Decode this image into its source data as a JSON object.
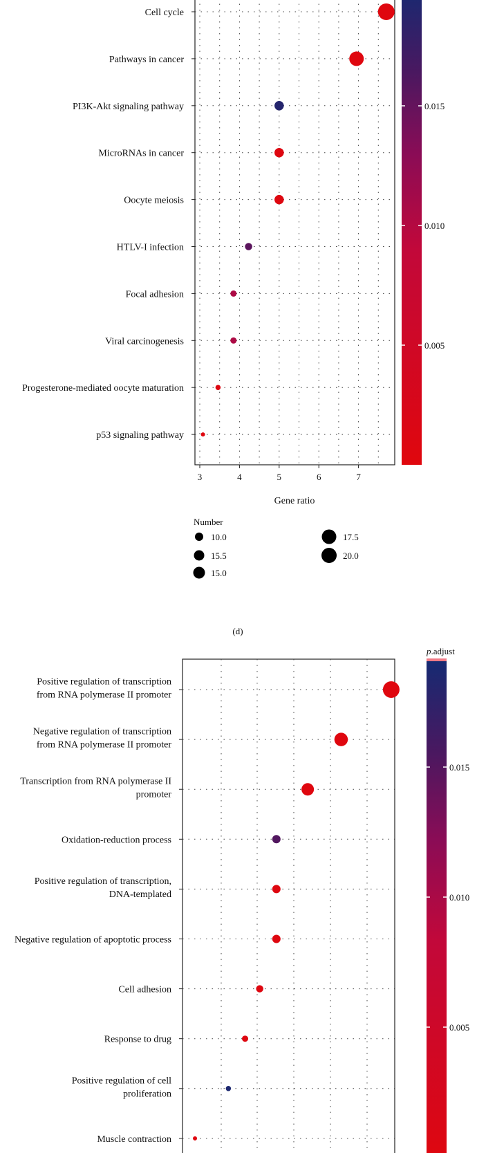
{
  "colors": {
    "low": "#e0070d",
    "mid": "#8a0c56",
    "high": "#162a72"
  },
  "legend": {
    "title": "Number",
    "items": [
      "10.0",
      "15.5",
      "15.0",
      "17.5",
      "20.0"
    ],
    "item_sizes": [
      10.0,
      15.5,
      15.0,
      17.5,
      20.0
    ]
  },
  "panel_label": "(d)",
  "chart_data": [
    {
      "type": "scatter",
      "xlabel": "Gene ratio",
      "x_ticks": [
        3,
        4,
        5,
        6,
        7
      ],
      "xlim": [
        2.85,
        7.95
      ],
      "categories": [
        "Cell cycle",
        "Pathways in cancer",
        "PI3K-Akt signaling pathway",
        "MicroRNAs in cancer",
        "Oocyte meiosis",
        "HTLV-I infection",
        "Focal adhesion",
        "Viral carcinogenesis",
        "Progesterone-mediated oocyte maturation",
        "p53 signaling pathway"
      ],
      "x": [
        7.7,
        6.95,
        5.0,
        5.0,
        5.0,
        4.23,
        3.85,
        3.85,
        3.46,
        3.08
      ],
      "p_adjust": [
        0.0003,
        0.0003,
        0.019,
        0.0005,
        0.0005,
        0.0155,
        0.0105,
        0.0105,
        0.0008,
        0.0003
      ],
      "size": [
        20.0,
        18.0,
        13.0,
        13.0,
        13.0,
        11.0,
        10.0,
        10.0,
        9.0,
        8.0
      ],
      "colorbar": {
        "title": "",
        "ticks": [
          "0.005",
          "0.010",
          "0.015"
        ],
        "tick_values": [
          0.005,
          0.01,
          0.015
        ],
        "range": [
          0.0,
          0.02
        ]
      },
      "grid": true
    },
    {
      "type": "scatter",
      "xlabel": "",
      "x_ticks": [],
      "xlim": [
        2.85,
        7.95
      ],
      "categories": [
        [
          "Positive regulation of transcription",
          "from RNA polymerase II promoter"
        ],
        [
          "Negative regulation of transcription",
          "from RNA polymerase II promoter"
        ],
        [
          "Transcription from RNA polymerase II",
          "promoter"
        ],
        [
          "Oxidation-reduction process"
        ],
        [
          "Positive regulation of transcription,",
          "DNA-templated"
        ],
        [
          "Negative regulation of apoptotic process"
        ],
        [
          "Cell adhesion"
        ],
        [
          "Response to drug"
        ],
        [
          "Positive regulation of cell",
          "proliferation"
        ],
        [
          "Muscle contraction"
        ]
      ],
      "x": [
        7.8,
        6.6,
        5.8,
        5.05,
        5.05,
        5.05,
        4.65,
        4.3,
        3.9,
        3.1
      ],
      "p_adjust": [
        0.0003,
        0.0003,
        0.0003,
        0.016,
        0.0005,
        0.0005,
        0.0005,
        0.0005,
        0.0195,
        0.0003
      ],
      "size": [
        20.0,
        17.0,
        16.0,
        12.0,
        12.0,
        12.0,
        11.0,
        10.0,
        9.0,
        8.0
      ],
      "colorbar": {
        "title_italic": "p",
        "title_rest": ".adjust",
        "ticks": [
          "0.005",
          "0.010",
          "0.015"
        ],
        "tick_values": [
          0.005,
          0.01,
          0.015
        ],
        "range": [
          0.0,
          0.02
        ]
      },
      "grid": true
    }
  ]
}
